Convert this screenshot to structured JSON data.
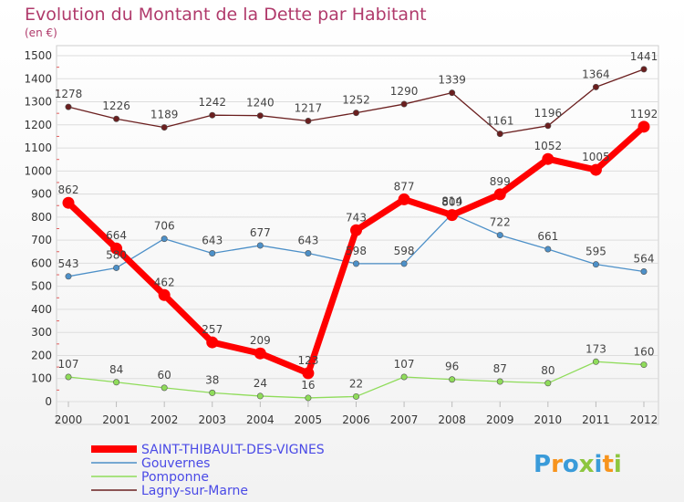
{
  "chart_data": {
    "type": "line",
    "title": "Evolution du Montant de la Dette par Habitant",
    "unit": "(en €)",
    "x": [
      "2000",
      "2001",
      "2002",
      "2003",
      "2004",
      "2005",
      "2006",
      "2007",
      "2008",
      "2009",
      "2010",
      "2011",
      "2012"
    ],
    "ylim": [
      0,
      1500
    ],
    "yticks": [
      0,
      100,
      200,
      300,
      400,
      500,
      600,
      700,
      800,
      900,
      1000,
      1100,
      1200,
      1300,
      1400,
      1500
    ],
    "grid": "horizontal",
    "legend_position": "bottom-left",
    "series": [
      {
        "name": "SAINT-THIBAULT-DES-VIGNES",
        "color": "#ff0000",
        "values": [
          862,
          664,
          462,
          257,
          209,
          123,
          743,
          877,
          809,
          899,
          1052,
          1005,
          1192
        ]
      },
      {
        "name": "Gouvernes",
        "color": "#4d90c8",
        "values": [
          543,
          580,
          706,
          643,
          677,
          643,
          598,
          598,
          814,
          722,
          661,
          595,
          564
        ]
      },
      {
        "name": "Pomponne",
        "color": "#8fdc5a",
        "values": [
          107,
          84,
          60,
          38,
          24,
          16,
          22,
          107,
          96,
          87,
          80,
          173,
          160
        ]
      },
      {
        "name": "Lagny-sur-Marne",
        "color": "#6b1f1f",
        "values": [
          1278,
          1226,
          1189,
          1242,
          1240,
          1217,
          1252,
          1290,
          1339,
          1161,
          1196,
          1364,
          1441
        ]
      }
    ]
  },
  "brand": {
    "letters": [
      "P",
      "r",
      "o",
      "x",
      "i",
      "t",
      "i"
    ],
    "colors": [
      "#3a9bd9",
      "#f7941d",
      "#3a9bd9",
      "#8dc63f",
      "#3a9bd9",
      "#f7941d",
      "#8dc63f"
    ]
  }
}
